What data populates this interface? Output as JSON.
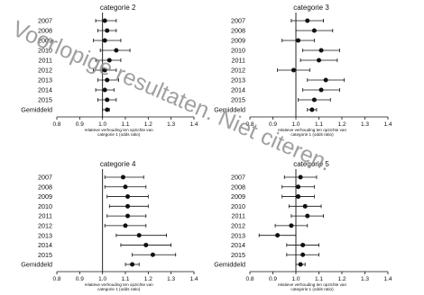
{
  "chart_data": [
    {
      "type": "forest",
      "title": "categorie 2",
      "categories": [
        "2007",
        "2008",
        "2009",
        "2010",
        "2011",
        "2012",
        "2013",
        "2014",
        "2015",
        "Gemiddeld"
      ],
      "estimates": [
        1.01,
        1.02,
        1.01,
        1.06,
        1.03,
        1.01,
        1.02,
        1.01,
        1.02,
        1.02
      ],
      "ci_low": [
        0.97,
        0.98,
        0.96,
        0.99,
        0.97,
        0.96,
        0.98,
        0.97,
        0.98,
        1.0
      ],
      "ci_high": [
        1.06,
        1.06,
        1.08,
        1.12,
        1.08,
        1.06,
        1.07,
        1.05,
        1.06,
        1.03
      ],
      "xlim": [
        0.8,
        1.4
      ],
      "xticks": [
        "0.8",
        "0.9",
        "1.0",
        "1.1",
        "1.2",
        "1.3",
        "1.4"
      ],
      "reference_x": 1.0,
      "xlabel_line1": "relatieve verhouding ten opzichte van",
      "xlabel_line2": "categorie 1 (odds ratio)"
    },
    {
      "type": "forest",
      "title": "categorie 3",
      "categories": [
        "2007",
        "2008",
        "2009",
        "2010",
        "2011",
        "2012",
        "2013",
        "2014",
        "2015",
        "Gemiddeld"
      ],
      "estimates": [
        1.05,
        1.08,
        1.01,
        1.11,
        1.1,
        0.99,
        1.13,
        1.11,
        1.08,
        1.07
      ],
      "ci_low": [
        0.98,
        1.0,
        0.94,
        1.03,
        1.02,
        0.92,
        1.05,
        1.03,
        1.01,
        1.05
      ],
      "ci_high": [
        1.12,
        1.16,
        1.08,
        1.19,
        1.18,
        1.06,
        1.21,
        1.19,
        1.15,
        1.09
      ],
      "xlim": [
        0.8,
        1.4
      ],
      "xticks": [
        "0.8",
        "0.9",
        "1.0",
        "1.1",
        "1.2",
        "1.3",
        "1.4"
      ],
      "reference_x": 1.0,
      "xlabel_line1": "relatieve verhouding ten opzichte van",
      "xlabel_line2": "categorie 1 (odds ratio)"
    },
    {
      "type": "forest",
      "title": "categorie 4",
      "categories": [
        "2007",
        "2008",
        "2009",
        "2010",
        "2011",
        "2012",
        "2013",
        "2014",
        "2015",
        "Gemiddeld"
      ],
      "estimates": [
        1.09,
        1.1,
        1.11,
        1.11,
        1.11,
        1.1,
        1.16,
        1.19,
        1.22,
        1.13
      ],
      "ci_low": [
        1.01,
        1.01,
        1.02,
        1.03,
        1.02,
        1.01,
        1.06,
        1.08,
        1.13,
        1.1
      ],
      "ci_high": [
        1.18,
        1.19,
        1.2,
        1.2,
        1.19,
        1.19,
        1.28,
        1.3,
        1.32,
        1.16
      ],
      "xlim": [
        0.8,
        1.4
      ],
      "xticks": [
        "0.8",
        "0.9",
        "1.0",
        "1.1",
        "1.2",
        "1.3",
        "1.4"
      ],
      "reference_x": 1.0,
      "xlabel_line1": "relatieve verhouding ten opzichte van",
      "xlabel_line2": "categorie 1 (odds ratio)"
    },
    {
      "type": "forest",
      "title": "categorie 5",
      "categories": [
        "2007",
        "2008",
        "2009",
        "2010",
        "2011",
        "2012",
        "2013",
        "2014",
        "2015",
        "Gemiddeld"
      ],
      "estimates": [
        1.02,
        1.01,
        1.01,
        1.04,
        1.05,
        0.98,
        0.92,
        1.03,
        1.03,
        1.02
      ],
      "ci_low": [
        0.95,
        0.94,
        0.94,
        0.97,
        0.98,
        0.91,
        0.84,
        0.96,
        0.96,
        1.0
      ],
      "ci_high": [
        1.09,
        1.08,
        1.08,
        1.11,
        1.12,
        1.05,
        1.0,
        1.1,
        1.1,
        1.04
      ],
      "xlim": [
        0.8,
        1.4
      ],
      "xticks": [
        "0.8",
        "0.9",
        "1.0",
        "1.1",
        "1.2",
        "1.3",
        "1.4"
      ],
      "reference_x": 1.0,
      "xlabel_line1": "relatieve verhouding ten opzichte van",
      "xlabel_line2": "categorie 1 (odds ratio)"
    }
  ],
  "watermark": {
    "text": "Voorlopige resultaten. Niet citeren.",
    "color": "#9a9a9a"
  }
}
